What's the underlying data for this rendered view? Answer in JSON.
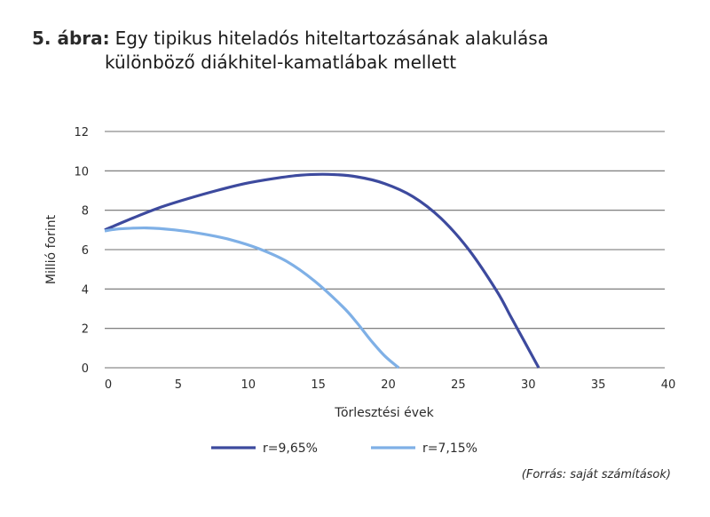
{
  "figure": {
    "label": "5. ábra:",
    "title_line1": "Egy tipikus hiteladós hiteltartozásának alakulása",
    "title_line2": "különböző diákhitel-kamatlábak mellett"
  },
  "source_note": "(Forrás: saját számítások)",
  "chart_data": {
    "type": "line",
    "title": "Egy tipikus hiteladós hiteltartozásának alakulása különböző diákhitel-kamatlábak mellett",
    "xlabel": "Törlesztési évek",
    "ylabel": "Millió forint",
    "xlim": [
      0,
      40
    ],
    "ylim": [
      0,
      12
    ],
    "xticks": [
      0,
      5,
      10,
      15,
      20,
      25,
      30,
      35,
      40
    ],
    "yticks": [
      0,
      2,
      4,
      6,
      8,
      10,
      12
    ],
    "grid": "horizontal",
    "legend_position": "bottom",
    "series": [
      {
        "name": "r=9,65%",
        "color": "#3d4a9e",
        "x": [
          0,
          2,
          4,
          6,
          8,
          10,
          12,
          14,
          16,
          18,
          20,
          22,
          24,
          26,
          28,
          29,
          30,
          31
        ],
        "y": [
          7.0,
          7.6,
          8.15,
          8.6,
          9.0,
          9.35,
          9.6,
          9.78,
          9.82,
          9.7,
          9.35,
          8.7,
          7.6,
          6.0,
          3.9,
          2.6,
          1.3,
          0.0
        ]
      },
      {
        "name": "r=7,15%",
        "color": "#7fb0e6",
        "x": [
          0,
          1,
          3,
          5,
          7,
          9,
          11,
          13,
          15,
          17,
          18,
          19,
          20,
          21
        ],
        "y": [
          6.95,
          7.05,
          7.1,
          7.0,
          6.8,
          6.5,
          6.05,
          5.4,
          4.4,
          3.1,
          2.3,
          1.4,
          0.6,
          0.0
        ]
      }
    ]
  }
}
